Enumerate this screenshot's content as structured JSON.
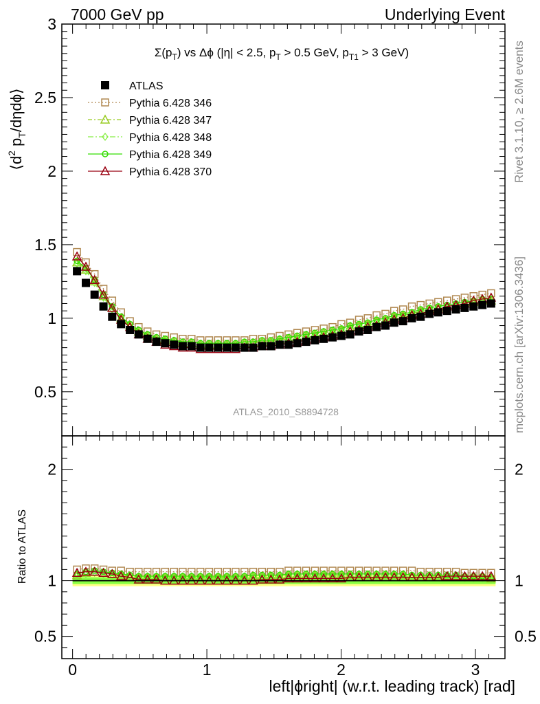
{
  "header": {
    "left_label": "7000 GeV pp",
    "right_label": "Underlying Event"
  },
  "side_labels": {
    "rivet": "Rivet 3.1.10, ≥ 2.6M events",
    "mcplots": "mcplots.cern.ch [arXiv:1306.3436]"
  },
  "watermark": "ATLAS_2010_S8894728",
  "colors": {
    "atlas": "#000000",
    "p346": "#b08850",
    "p347": "#99cc22",
    "p348": "#88ee44",
    "p349": "#33dd00",
    "p370": "#990011",
    "band_inner": "#88ff44",
    "band_outer": "#ffff88"
  },
  "chart_data": [
    {
      "type": "scatter",
      "title": "Σ(p_T) vs Δφ (|η| < 2.5, p_T > 0.5 GeV, p_T1 > 3 GeV)",
      "xlabel": "left|ϕright| (w.r.t. leading track) [rad]",
      "ylabel": "⟨d² p_T/dηdϕ⟩",
      "xlim": [
        -0.08,
        3.22
      ],
      "ylim": [
        0.2,
        3.0
      ],
      "x_ticks": [
        "0",
        "1",
        "2",
        "3"
      ],
      "y_ticks": [
        "0.5",
        "1",
        "1.5",
        "2",
        "2.5",
        "3"
      ],
      "legend_position": "top-left",
      "grid": false,
      "x": [
        0.033,
        0.099,
        0.164,
        0.23,
        0.295,
        0.361,
        0.427,
        0.492,
        0.558,
        0.624,
        0.689,
        0.755,
        0.82,
        0.886,
        0.952,
        1.017,
        1.083,
        1.149,
        1.214,
        1.28,
        1.345,
        1.411,
        1.477,
        1.542,
        1.608,
        1.673,
        1.739,
        1.805,
        1.87,
        1.936,
        2.002,
        2.067,
        2.133,
        2.198,
        2.264,
        2.33,
        2.395,
        2.461,
        2.527,
        2.592,
        2.658,
        2.723,
        2.789,
        2.855,
        2.92,
        2.986,
        3.052,
        3.117
      ],
      "series": [
        {
          "name": "ATLAS",
          "marker": "filled-square",
          "values": [
            1.32,
            1.24,
            1.16,
            1.08,
            1.01,
            0.96,
            0.92,
            0.89,
            0.86,
            0.84,
            0.83,
            0.82,
            0.81,
            0.81,
            0.8,
            0.8,
            0.8,
            0.8,
            0.8,
            0.8,
            0.8,
            0.81,
            0.81,
            0.82,
            0.82,
            0.83,
            0.84,
            0.85,
            0.86,
            0.87,
            0.88,
            0.89,
            0.91,
            0.92,
            0.94,
            0.95,
            0.97,
            0.98,
            1.0,
            1.01,
            1.03,
            1.04,
            1.05,
            1.06,
            1.07,
            1.08,
            1.09,
            1.1
          ]
        },
        {
          "name": "Pythia 6.428 346",
          "marker": "open-square",
          "values": [
            1.45,
            1.38,
            1.3,
            1.2,
            1.12,
            1.04,
            0.98,
            0.94,
            0.91,
            0.89,
            0.88,
            0.87,
            0.86,
            0.86,
            0.85,
            0.85,
            0.85,
            0.85,
            0.85,
            0.85,
            0.86,
            0.86,
            0.87,
            0.88,
            0.89,
            0.9,
            0.91,
            0.92,
            0.93,
            0.94,
            0.96,
            0.97,
            0.99,
            1.0,
            1.02,
            1.03,
            1.05,
            1.06,
            1.08,
            1.09,
            1.1,
            1.11,
            1.12,
            1.13,
            1.14,
            1.15,
            1.16,
            1.17
          ]
        },
        {
          "name": "Pythia 6.428 347",
          "marker": "open-triangle",
          "values": [
            1.38,
            1.33,
            1.25,
            1.15,
            1.07,
            1.0,
            0.95,
            0.91,
            0.88,
            0.86,
            0.85,
            0.84,
            0.83,
            0.83,
            0.82,
            0.82,
            0.82,
            0.82,
            0.82,
            0.83,
            0.83,
            0.84,
            0.84,
            0.85,
            0.86,
            0.87,
            0.88,
            0.89,
            0.9,
            0.91,
            0.92,
            0.94,
            0.95,
            0.96,
            0.98,
            0.99,
            1.01,
            1.02,
            1.03,
            1.05,
            1.06,
            1.07,
            1.08,
            1.09,
            1.1,
            1.11,
            1.12,
            1.12
          ]
        },
        {
          "name": "Pythia 6.428 348",
          "marker": "open-diamond",
          "values": [
            1.37,
            1.32,
            1.24,
            1.14,
            1.06,
            0.99,
            0.94,
            0.9,
            0.87,
            0.85,
            0.84,
            0.83,
            0.82,
            0.82,
            0.81,
            0.81,
            0.81,
            0.81,
            0.81,
            0.82,
            0.82,
            0.83,
            0.83,
            0.84,
            0.85,
            0.86,
            0.87,
            0.88,
            0.89,
            0.9,
            0.91,
            0.93,
            0.94,
            0.95,
            0.97,
            0.98,
            1.0,
            1.01,
            1.02,
            1.04,
            1.05,
            1.06,
            1.07,
            1.08,
            1.09,
            1.1,
            1.11,
            1.11
          ]
        },
        {
          "name": "Pythia 6.428 349",
          "marker": "open-circle",
          "values": [
            1.39,
            1.34,
            1.26,
            1.16,
            1.08,
            1.01,
            0.96,
            0.92,
            0.89,
            0.87,
            0.86,
            0.85,
            0.84,
            0.84,
            0.83,
            0.83,
            0.83,
            0.83,
            0.83,
            0.84,
            0.84,
            0.85,
            0.85,
            0.86,
            0.87,
            0.88,
            0.89,
            0.9,
            0.91,
            0.92,
            0.93,
            0.95,
            0.96,
            0.97,
            0.99,
            1.0,
            1.02,
            1.03,
            1.04,
            1.06,
            1.07,
            1.08,
            1.09,
            1.1,
            1.11,
            1.12,
            1.13,
            1.13
          ]
        },
        {
          "name": "Pythia 6.428 370",
          "marker": "open-triangle",
          "values": [
            1.42,
            1.35,
            1.26,
            1.16,
            1.07,
            0.99,
            0.94,
            0.89,
            0.86,
            0.84,
            0.82,
            0.81,
            0.8,
            0.8,
            0.79,
            0.79,
            0.79,
            0.79,
            0.79,
            0.8,
            0.8,
            0.81,
            0.81,
            0.82,
            0.83,
            0.84,
            0.85,
            0.86,
            0.87,
            0.88,
            0.89,
            0.91,
            0.92,
            0.94,
            0.95,
            0.97,
            0.99,
            1.0,
            1.02,
            1.03,
            1.05,
            1.06,
            1.08,
            1.09,
            1.1,
            1.12,
            1.13,
            1.14
          ]
        }
      ]
    },
    {
      "type": "scatter",
      "ylabel": "Ratio to ATLAS",
      "xlabel": "left|ϕright| (w.r.t. leading track) [rad]",
      "xlim": [
        -0.08,
        3.22
      ],
      "ylim": [
        0.3,
        2.3
      ],
      "x_ticks": [
        "0",
        "1",
        "2",
        "3"
      ],
      "y_ticks": [
        "0.5",
        "1",
        "2"
      ],
      "reference_line": 1,
      "band_inner": [
        0.97,
        1.03
      ],
      "band_outer": [
        0.95,
        1.05
      ],
      "x": [
        0.033,
        0.099,
        0.164,
        0.23,
        0.295,
        0.361,
        0.427,
        0.492,
        0.558,
        0.624,
        0.689,
        0.755,
        0.82,
        0.886,
        0.952,
        1.017,
        1.083,
        1.149,
        1.214,
        1.28,
        1.345,
        1.411,
        1.477,
        1.542,
        1.608,
        1.673,
        1.739,
        1.805,
        1.87,
        1.936,
        2.002,
        2.067,
        2.133,
        2.198,
        2.264,
        2.33,
        2.395,
        2.461,
        2.527,
        2.592,
        2.658,
        2.723,
        2.789,
        2.855,
        2.92,
        2.986,
        3.052,
        3.117
      ],
      "series": [
        {
          "name": "Pythia 6.428 346",
          "values": [
            1.1,
            1.11,
            1.11,
            1.1,
            1.09,
            1.09,
            1.08,
            1.08,
            1.08,
            1.08,
            1.08,
            1.08,
            1.08,
            1.08,
            1.08,
            1.08,
            1.08,
            1.08,
            1.08,
            1.08,
            1.08,
            1.08,
            1.08,
            1.08,
            1.09,
            1.09,
            1.09,
            1.09,
            1.09,
            1.09,
            1.09,
            1.09,
            1.09,
            1.09,
            1.09,
            1.09,
            1.09,
            1.09,
            1.09,
            1.08,
            1.08,
            1.08,
            1.08,
            1.08,
            1.07,
            1.07,
            1.07,
            1.07
          ]
        },
        {
          "name": "Pythia 6.428 347",
          "values": [
            1.05,
            1.07,
            1.08,
            1.07,
            1.06,
            1.05,
            1.04,
            1.03,
            1.03,
            1.03,
            1.03,
            1.03,
            1.03,
            1.03,
            1.03,
            1.03,
            1.03,
            1.03,
            1.03,
            1.03,
            1.04,
            1.04,
            1.04,
            1.04,
            1.05,
            1.05,
            1.05,
            1.05,
            1.05,
            1.05,
            1.05,
            1.05,
            1.05,
            1.05,
            1.05,
            1.05,
            1.05,
            1.05,
            1.04,
            1.04,
            1.04,
            1.04,
            1.04,
            1.04,
            1.03,
            1.03,
            1.03,
            1.02
          ]
        },
        {
          "name": "Pythia 6.428 348",
          "values": [
            1.04,
            1.06,
            1.07,
            1.06,
            1.05,
            1.04,
            1.03,
            1.02,
            1.02,
            1.02,
            1.02,
            1.02,
            1.02,
            1.02,
            1.02,
            1.02,
            1.02,
            1.02,
            1.02,
            1.02,
            1.03,
            1.03,
            1.03,
            1.03,
            1.04,
            1.04,
            1.04,
            1.04,
            1.04,
            1.04,
            1.04,
            1.04,
            1.04,
            1.04,
            1.04,
            1.04,
            1.04,
            1.04,
            1.03,
            1.03,
            1.03,
            1.03,
            1.03,
            1.03,
            1.02,
            1.02,
            1.02,
            1.01
          ]
        },
        {
          "name": "Pythia 6.428 349",
          "values": [
            1.06,
            1.08,
            1.09,
            1.08,
            1.07,
            1.06,
            1.05,
            1.04,
            1.04,
            1.04,
            1.04,
            1.04,
            1.04,
            1.04,
            1.04,
            1.04,
            1.04,
            1.04,
            1.04,
            1.04,
            1.05,
            1.05,
            1.05,
            1.05,
            1.06,
            1.06,
            1.06,
            1.06,
            1.06,
            1.06,
            1.06,
            1.06,
            1.06,
            1.06,
            1.06,
            1.06,
            1.06,
            1.06,
            1.05,
            1.05,
            1.05,
            1.05,
            1.05,
            1.05,
            1.04,
            1.04,
            1.04,
            1.03
          ]
        },
        {
          "name": "Pythia 6.428 370",
          "values": [
            1.07,
            1.08,
            1.08,
            1.07,
            1.06,
            1.04,
            1.03,
            1.01,
            1.01,
            1.01,
            1.0,
            1.0,
            1.0,
            1.0,
            1.0,
            1.0,
            1.0,
            1.0,
            1.0,
            1.0,
            1.0,
            1.01,
            1.01,
            1.01,
            1.02,
            1.02,
            1.02,
            1.02,
            1.02,
            1.02,
            1.02,
            1.03,
            1.03,
            1.03,
            1.03,
            1.03,
            1.03,
            1.03,
            1.03,
            1.03,
            1.03,
            1.03,
            1.04,
            1.04,
            1.04,
            1.04,
            1.04,
            1.04
          ]
        }
      ]
    }
  ]
}
